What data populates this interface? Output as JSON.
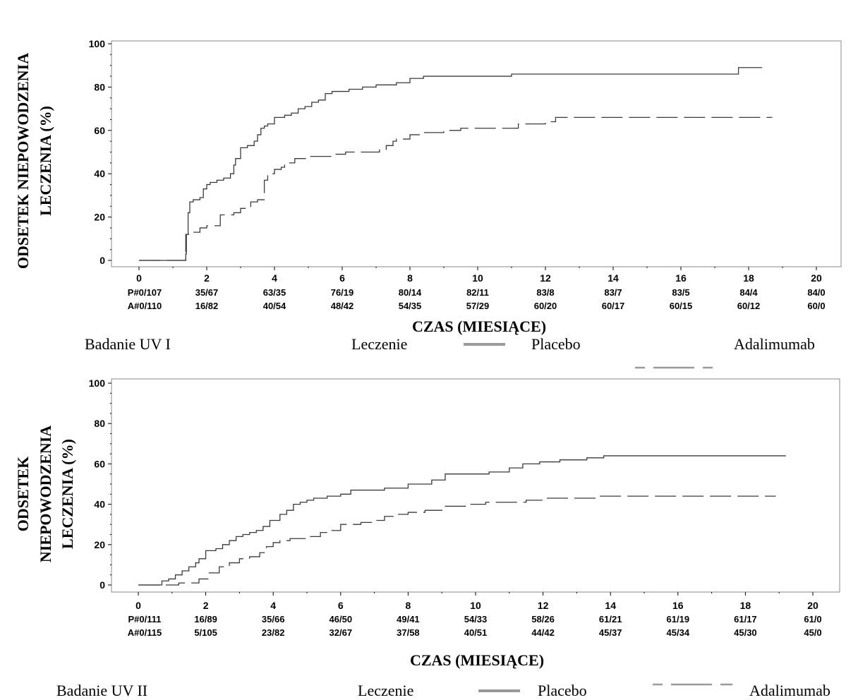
{
  "chart_data": [
    {
      "type": "line",
      "study_label": "Badanie UV I",
      "ylabel_lines": [
        "ODSETEK NIEPOWODZENIA",
        "LECZENIA (%)"
      ],
      "xlabel": "CZAS (MIESIĄCE)",
      "xlim": [
        0,
        20
      ],
      "ylim": [
        0,
        100
      ],
      "xticks": [
        "0",
        "2",
        "4",
        "6",
        "8",
        "10",
        "12",
        "14",
        "16",
        "18",
        "20"
      ],
      "yticks": [
        "0",
        "20",
        "40",
        "60",
        "80",
        "100"
      ],
      "legend": {
        "title": "Leczenie",
        "entries": [
          {
            "name": "Placebo",
            "style": "solid"
          },
          {
            "name": "Adalimumab",
            "style": "dashed"
          }
        ]
      },
      "series": [
        {
          "name": "Placebo",
          "style": "solid",
          "x": [
            0,
            1.38,
            1.4,
            1.45,
            1.5,
            1.6,
            1.8,
            1.9,
            2.0,
            2.1,
            2.3,
            2.5,
            2.7,
            2.8,
            2.85,
            3.0,
            3.2,
            3.4,
            3.5,
            3.6,
            3.7,
            3.8,
            4.0,
            4.3,
            4.5,
            4.7,
            4.9,
            5.1,
            5.3,
            5.5,
            5.7,
            5.8,
            6.2,
            6.6,
            7.0,
            7.6,
            8.0,
            8.4,
            11.0,
            17.7,
            18.4
          ],
          "y": [
            0,
            3,
            12,
            22,
            27,
            28,
            29,
            33,
            35,
            36,
            37,
            38,
            40,
            44,
            47,
            52,
            53,
            55,
            58,
            61,
            62,
            63,
            66,
            67,
            68,
            70,
            71,
            73,
            74,
            77,
            78,
            78,
            79,
            80,
            81,
            82,
            84,
            85,
            86,
            89,
            89
          ]
        },
        {
          "name": "Adalimumab",
          "style": "dashed",
          "x": [
            0,
            1.38,
            1.5,
            1.8,
            2.0,
            2.4,
            2.8,
            3.0,
            3.3,
            3.5,
            3.7,
            3.8,
            4.0,
            4.2,
            4.3,
            4.6,
            5.0,
            5.4,
            5.8,
            6.1,
            7.1,
            7.3,
            7.5,
            7.6,
            8.0,
            8.4,
            9.0,
            9.5,
            11.2,
            12.0,
            12.3,
            18.7
          ],
          "y": [
            0,
            12,
            13,
            15,
            16,
            21,
            22,
            24,
            27,
            28,
            37,
            40,
            42,
            43,
            45,
            47,
            48,
            48,
            49,
            50,
            51,
            53,
            55,
            56,
            58,
            59,
            60,
            61,
            63,
            64,
            66,
            66
          ]
        }
      ],
      "risk_table": {
        "rows": [
          {
            "label": "P#0/107",
            "values": [
              "35/67",
              "63/35",
              "76/19",
              "80/14",
              "82/11",
              "83/8",
              "83/7",
              "83/5",
              "84/4",
              "84/0"
            ]
          },
          {
            "label": "A#0/110",
            "values": [
              "16/82",
              "40/54",
              "48/42",
              "54/35",
              "57/29",
              "60/20",
              "60/17",
              "60/15",
              "60/12",
              "60/0"
            ]
          }
        ]
      }
    },
    {
      "type": "line",
      "study_label": "Badanie UV II",
      "ylabel_lines": [
        "ODSETEK",
        "NIEPOWODZENIA",
        "LECZENIA (%)"
      ],
      "xlabel": "CZAS (MIESIĄCE)",
      "xlim": [
        0,
        20
      ],
      "ylim": [
        0,
        100
      ],
      "xticks": [
        "0",
        "2",
        "4",
        "6",
        "8",
        "10",
        "12",
        "14",
        "16",
        "18",
        "20"
      ],
      "yticks": [
        "0",
        "20",
        "40",
        "60",
        "80",
        "100"
      ],
      "legend": {
        "title": "Leczenie",
        "entries": [
          {
            "name": "Placebo",
            "style": "solid"
          },
          {
            "name": "Adalimumab",
            "style": "dashed"
          }
        ]
      },
      "series": [
        {
          "name": "Placebo",
          "style": "solid",
          "x": [
            0,
            0.7,
            0.9,
            1.1,
            1.3,
            1.5,
            1.7,
            1.8,
            2.0,
            2.3,
            2.5,
            2.7,
            2.9,
            3.1,
            3.3,
            3.5,
            3.7,
            3.9,
            4.2,
            4.4,
            4.6,
            4.8,
            5.0,
            5.2,
            5.6,
            6.0,
            6.3,
            7.3,
            8.0,
            8.7,
            9.1,
            10.4,
            11.0,
            11.4,
            11.9,
            12.5,
            13.3,
            13.8,
            19.2
          ],
          "y": [
            0,
            2,
            3,
            5,
            7,
            9,
            11,
            13,
            17,
            18,
            20,
            22,
            24,
            25,
            26,
            27,
            29,
            32,
            35,
            37,
            40,
            41,
            42,
            43,
            44,
            45,
            47,
            48,
            50,
            52,
            55,
            56,
            58,
            60,
            61,
            62,
            63,
            64,
            64
          ]
        },
        {
          "name": "Adalimumab",
          "style": "dashed",
          "x": [
            0,
            1.2,
            1.8,
            2.1,
            2.4,
            2.7,
            3.0,
            3.3,
            3.6,
            3.8,
            4.0,
            4.2,
            4.5,
            5.0,
            5.4,
            5.7,
            6.0,
            6.6,
            7.0,
            7.3,
            7.6,
            8.0,
            8.5,
            9.0,
            9.7,
            10.3,
            11.5,
            12.1,
            13.6,
            18.9
          ],
          "y": [
            0,
            1,
            3,
            6,
            9,
            11,
            13,
            14,
            16,
            19,
            21,
            22,
            23,
            24,
            26,
            27,
            30,
            31,
            32,
            34,
            35,
            36,
            37,
            39,
            40,
            41,
            42,
            43,
            44,
            44
          ]
        }
      ],
      "risk_table": {
        "rows": [
          {
            "label": "P#0/111",
            "values": [
              "16/89",
              "35/66",
              "46/50",
              "49/41",
              "54/33",
              "58/26",
              "61/21",
              "61/19",
              "61/17",
              "61/0"
            ]
          },
          {
            "label": "A#0/115",
            "values": [
              "5/105",
              "23/82",
              "32/67",
              "37/58",
              "40/51",
              "44/42",
              "45/37",
              "45/34",
              "45/30",
              "45/0"
            ]
          }
        ]
      }
    }
  ]
}
